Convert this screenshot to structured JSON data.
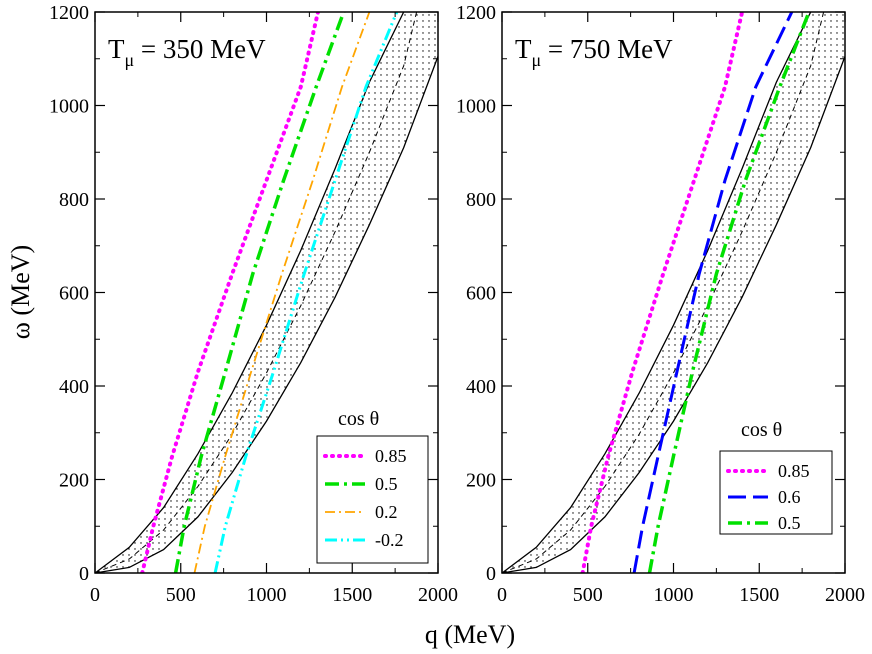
{
  "chart_data": [
    {
      "type": "line",
      "panel": "left",
      "title_base": "T",
      "title_sub": "μ",
      "title_rest": " = 350 MeV",
      "title": "Tμ = 350 MeV",
      "xlabel": "q (MeV)",
      "ylabel": "ω (MeV)",
      "xlim": [
        0,
        2000
      ],
      "ylim": [
        0,
        1200
      ],
      "x_ticks": [
        0,
        500,
        1000,
        1500,
        2000
      ],
      "x_tick_labels": [
        "0",
        "500",
        "1000",
        "1500",
        "2000"
      ],
      "y_ticks": [
        0,
        200,
        400,
        600,
        800,
        1000,
        1200
      ],
      "y_tick_labels": [
        "0",
        "200",
        "400",
        "600",
        "800",
        "1000",
        "1200"
      ],
      "legend_title": "cos θ",
      "legend_position": "lower-right",
      "band": {
        "description": "shaded QE region between two solid boundary curves with dashed center",
        "lower": [
          [
            0,
            0
          ],
          [
            200,
            12
          ],
          [
            400,
            50
          ],
          [
            600,
            120
          ],
          [
            800,
            215
          ],
          [
            1000,
            325
          ],
          [
            1200,
            450
          ],
          [
            1400,
            590
          ],
          [
            1600,
            745
          ],
          [
            1800,
            910
          ],
          [
            2000,
            1105
          ]
        ],
        "upper": [
          [
            0,
            0
          ],
          [
            200,
            55
          ],
          [
            400,
            140
          ],
          [
            600,
            255
          ],
          [
            800,
            385
          ],
          [
            1000,
            530
          ],
          [
            1200,
            690
          ],
          [
            1400,
            865
          ],
          [
            1600,
            1050
          ],
          [
            1800,
            1200
          ]
        ],
        "center": [
          [
            0,
            0
          ],
          [
            200,
            30
          ],
          [
            400,
            92
          ],
          [
            600,
            185
          ],
          [
            800,
            297
          ],
          [
            1000,
            428
          ],
          [
            1200,
            572
          ],
          [
            1400,
            730
          ],
          [
            1600,
            900
          ],
          [
            1800,
            1085
          ],
          [
            1875,
            1200
          ]
        ]
      },
      "series": [
        {
          "name": "0.85",
          "color": "#ff00ff",
          "style": "dotted",
          "points": [
            [
              275,
              0
            ],
            [
              340,
              100
            ],
            [
              450,
              250
            ],
            [
              600,
              430
            ],
            [
              800,
              640
            ],
            [
              1000,
              840
            ],
            [
              1200,
              1040
            ],
            [
              1300,
              1200
            ]
          ]
        },
        {
          "name": "0.5",
          "color": "#00e000",
          "style": "dashdot",
          "points": [
            [
              470,
              0
            ],
            [
              520,
              100
            ],
            [
              620,
              250
            ],
            [
              760,
              430
            ],
            [
              920,
              640
            ],
            [
              1100,
              840
            ],
            [
              1290,
              1040
            ],
            [
              1450,
              1200
            ]
          ]
        },
        {
          "name": "0.2",
          "color": "#ffa500",
          "style": "dashdotthin",
          "points": [
            [
              580,
              0
            ],
            [
              640,
              100
            ],
            [
              760,
              250
            ],
            [
              910,
              430
            ],
            [
              1090,
              640
            ],
            [
              1270,
              840
            ],
            [
              1440,
              1040
            ],
            [
              1600,
              1200
            ]
          ]
        },
        {
          "name": "-0.2",
          "color": "#00ffff",
          "style": "dashdotdot",
          "points": [
            [
              700,
              0
            ],
            [
              760,
              100
            ],
            [
              880,
              250
            ],
            [
              1040,
              430
            ],
            [
              1220,
              640
            ],
            [
              1400,
              840
            ],
            [
              1580,
              1040
            ],
            [
              1760,
              1200
            ]
          ]
        }
      ]
    },
    {
      "type": "line",
      "panel": "right",
      "title_base": "T",
      "title_sub": "μ",
      "title_rest": " = 750 MeV",
      "title": "Tμ = 750 MeV",
      "xlabel": "q (MeV)",
      "xlim": [
        0,
        2000
      ],
      "ylim": [
        0,
        1200
      ],
      "x_ticks": [
        0,
        500,
        1000,
        1500,
        2000
      ],
      "x_tick_labels": [
        "0",
        "500",
        "1000",
        "1500",
        "2000"
      ],
      "y_ticks": [
        0,
        200,
        400,
        600,
        800,
        1000,
        1200
      ],
      "y_tick_labels": [
        "0",
        "200",
        "400",
        "600",
        "800",
        "1000",
        "1200"
      ],
      "legend_title": "cos θ",
      "legend_position": "lower-right",
      "band": {
        "lower": [
          [
            0,
            0
          ],
          [
            200,
            12
          ],
          [
            400,
            50
          ],
          [
            600,
            120
          ],
          [
            800,
            215
          ],
          [
            1000,
            325
          ],
          [
            1200,
            450
          ],
          [
            1400,
            590
          ],
          [
            1600,
            745
          ],
          [
            1800,
            910
          ],
          [
            2000,
            1105
          ]
        ],
        "upper": [
          [
            0,
            0
          ],
          [
            200,
            55
          ],
          [
            400,
            140
          ],
          [
            600,
            255
          ],
          [
            800,
            385
          ],
          [
            1000,
            530
          ],
          [
            1200,
            690
          ],
          [
            1400,
            865
          ],
          [
            1600,
            1050
          ],
          [
            1800,
            1200
          ]
        ],
        "center": [
          [
            0,
            0
          ],
          [
            200,
            30
          ],
          [
            400,
            92
          ],
          [
            600,
            185
          ],
          [
            800,
            297
          ],
          [
            1000,
            428
          ],
          [
            1200,
            572
          ],
          [
            1400,
            730
          ],
          [
            1600,
            900
          ],
          [
            1800,
            1085
          ],
          [
            1875,
            1200
          ]
        ]
      },
      "series": [
        {
          "name": "0.85",
          "color": "#ff00ff",
          "style": "dotted",
          "points": [
            [
              470,
              0
            ],
            [
              520,
              100
            ],
            [
              620,
              250
            ],
            [
              760,
              430
            ],
            [
              940,
              640
            ],
            [
              1120,
              840
            ],
            [
              1300,
              1040
            ],
            [
              1400,
              1200
            ]
          ]
        },
        {
          "name": "0.6",
          "color": "#0000ff",
          "style": "dashed",
          "points": [
            [
              770,
              0
            ],
            [
              820,
              100
            ],
            [
              910,
              250
            ],
            [
              1020,
              430
            ],
            [
              1150,
              640
            ],
            [
              1300,
              840
            ],
            [
              1480,
              1040
            ],
            [
              1690,
              1200
            ]
          ]
        },
        {
          "name": "0.5",
          "color": "#00e000",
          "style": "dashdot",
          "points": [
            [
              860,
              0
            ],
            [
              910,
              100
            ],
            [
              1000,
              250
            ],
            [
              1110,
              430
            ],
            [
              1250,
              640
            ],
            [
              1420,
              840
            ],
            [
              1620,
              1040
            ],
            [
              1790,
              1200
            ]
          ]
        }
      ]
    }
  ]
}
